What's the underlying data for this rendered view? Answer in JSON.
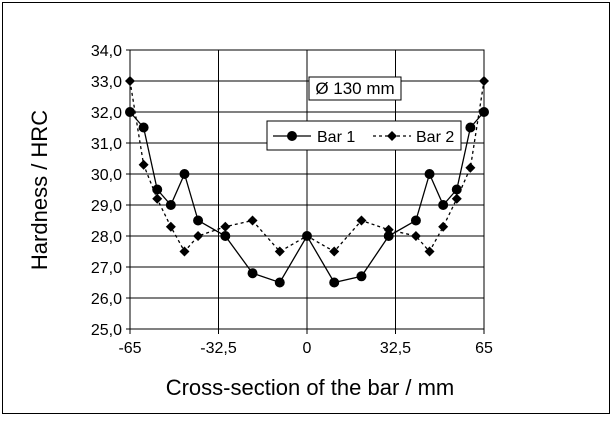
{
  "chart_data": {
    "type": "line",
    "title": "",
    "xlabel": "Cross-section of the bar / mm",
    "ylabel": "Hardness / HRC",
    "xlim": [
      -65,
      65
    ],
    "ylim": [
      25,
      34
    ],
    "x_ticks": [
      "-65",
      "-32,5",
      "0",
      "32,5",
      "65"
    ],
    "y_ticks": [
      "25,0",
      "26,0",
      "27,0",
      "28,0",
      "29,0",
      "30,0",
      "31,0",
      "32,0",
      "33,0",
      "34,0"
    ],
    "grid": true,
    "legend_placement": "upper-center",
    "annotation": "Ø 130 mm",
    "series": [
      {
        "name": "Bar 1",
        "style": "solid line, filled circle markers",
        "color": "#000000",
        "x": [
          -65,
          -60,
          -55,
          -50,
          -45,
          -40,
          -30,
          -20,
          -10,
          0,
          10,
          20,
          30,
          40,
          45,
          50,
          55,
          60,
          65
        ],
        "y": [
          32.0,
          31.5,
          29.5,
          29.0,
          30.0,
          28.5,
          28.0,
          26.8,
          26.5,
          28.0,
          26.5,
          26.7,
          28.0,
          28.5,
          30.0,
          29.0,
          29.5,
          31.5,
          32.0
        ]
      },
      {
        "name": "Bar 2",
        "style": "dashed line, diamond markers",
        "color": "#000000",
        "x": [
          -65,
          -60,
          -55,
          -50,
          -45,
          -40,
          -30,
          -20,
          -10,
          0,
          10,
          20,
          30,
          40,
          45,
          50,
          55,
          60,
          65
        ],
        "y": [
          33.0,
          30.3,
          29.2,
          28.3,
          27.5,
          28.0,
          28.3,
          28.5,
          27.5,
          28.0,
          27.5,
          28.5,
          28.2,
          28.0,
          27.5,
          28.3,
          29.2,
          30.2,
          33.0
        ]
      }
    ]
  }
}
